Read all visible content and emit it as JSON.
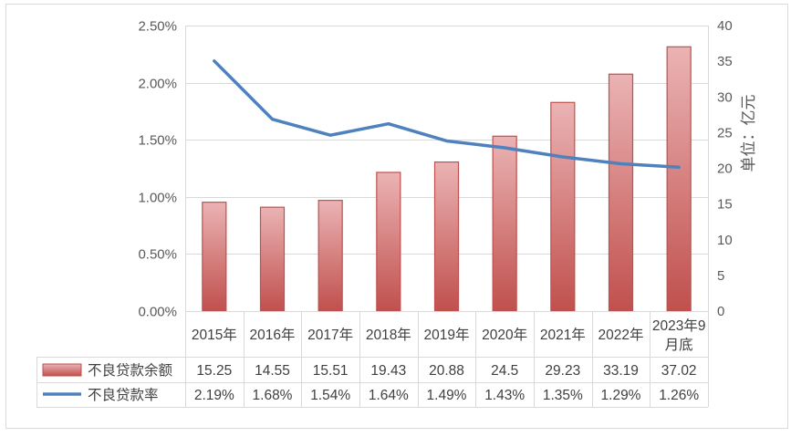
{
  "chart_data": {
    "type": "bar+line",
    "categories": [
      "2015年",
      "2016年",
      "2017年",
      "2018年",
      "2019年",
      "2020年",
      "2021年",
      "2022年",
      "2023年9月底"
    ],
    "category_lines": [
      [
        "2015年"
      ],
      [
        "2016年"
      ],
      [
        "2017年"
      ],
      [
        "2018年"
      ],
      [
        "2019年"
      ],
      [
        "2020年"
      ],
      [
        "2021年"
      ],
      [
        "2022年"
      ],
      [
        "2023年9",
        "月底"
      ]
    ],
    "series": [
      {
        "name": "不良贷款余额",
        "type": "bar",
        "axis": "right",
        "values": [
          15.25,
          14.55,
          15.51,
          19.43,
          20.88,
          24.5,
          29.23,
          33.19,
          37.02
        ],
        "labels": [
          "15.25",
          "14.55",
          "15.51",
          "19.43",
          "20.88",
          "24.5",
          "29.23",
          "33.19",
          "37.02"
        ],
        "color_top": "#ebb3b4",
        "color_bottom": "#c0504d",
        "border": "#c0504d"
      },
      {
        "name": "不良贷款率",
        "type": "line",
        "axis": "left",
        "values": [
          2.19,
          1.68,
          1.54,
          1.64,
          1.49,
          1.43,
          1.35,
          1.29,
          1.26
        ],
        "labels": [
          "2.19%",
          "1.68%",
          "1.54%",
          "1.64%",
          "1.49%",
          "1.43%",
          "1.35%",
          "1.29%",
          "1.26%"
        ],
        "color": "#4f81bd"
      }
    ],
    "y_left": {
      "min": 0,
      "max": 2.5,
      "ticks": [
        "0.00%",
        "0.50%",
        "1.00%",
        "1.50%",
        "2.00%",
        "2.50%"
      ]
    },
    "y_right": {
      "min": 0,
      "max": 40,
      "ticks": [
        "0",
        "5",
        "10",
        "15",
        "20",
        "25",
        "30",
        "35",
        "40"
      ],
      "label": "单位：亿元"
    },
    "grid": true,
    "legend": "data-table-bottom"
  }
}
